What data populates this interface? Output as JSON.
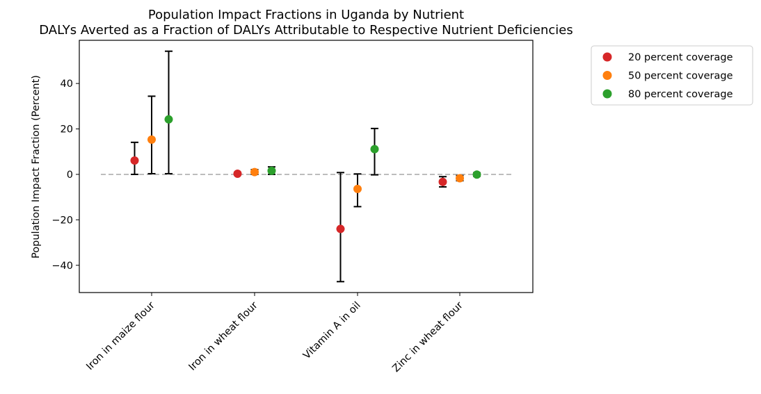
{
  "chart_data": {
    "type": "scatter",
    "title": "Population Impact Fractions in Uganda by Nutrient",
    "subtitle": "DALYs Averted as a Fraction of DALYs Attributable to Respective Nutrient Deficiencies",
    "xlabel": "",
    "ylabel": "Population Impact Fraction (Percent)",
    "categories": [
      "Iron in maize flour",
      "Iron in wheat flour",
      "Vitamin A in oil",
      "Zinc in wheat flour"
    ],
    "ylim": [
      -52,
      59
    ],
    "yticks": [
      -40,
      -20,
      0,
      20,
      40
    ],
    "ytick_labels": [
      "−40",
      "−20",
      "0",
      "20",
      "40"
    ],
    "reference_line": 0,
    "grid": false,
    "legend_position": "outside top-right",
    "series": [
      {
        "name": "20 percent coverage",
        "color": "#d62728",
        "values": [
          6.1,
          0.3,
          -24.0,
          -3.3
        ],
        "lower": [
          0.0,
          0.0,
          -47.2,
          -5.5
        ],
        "upper": [
          14.1,
          0.8,
          0.8,
          -1.0
        ]
      },
      {
        "name": "50 percent coverage",
        "color": "#ff7f0e",
        "values": [
          15.3,
          1.0,
          -6.4,
          -1.7
        ],
        "lower": [
          0.3,
          0.0,
          -14.2,
          -2.8
        ],
        "upper": [
          34.4,
          2.1,
          0.2,
          -0.5
        ]
      },
      {
        "name": "80 percent coverage",
        "color": "#2ca02c",
        "values": [
          24.2,
          1.6,
          11.1,
          -0.1
        ],
        "lower": [
          0.3,
          0.0,
          -0.2,
          -0.8
        ],
        "upper": [
          54.2,
          3.3,
          20.2,
          0.7
        ]
      }
    ]
  }
}
